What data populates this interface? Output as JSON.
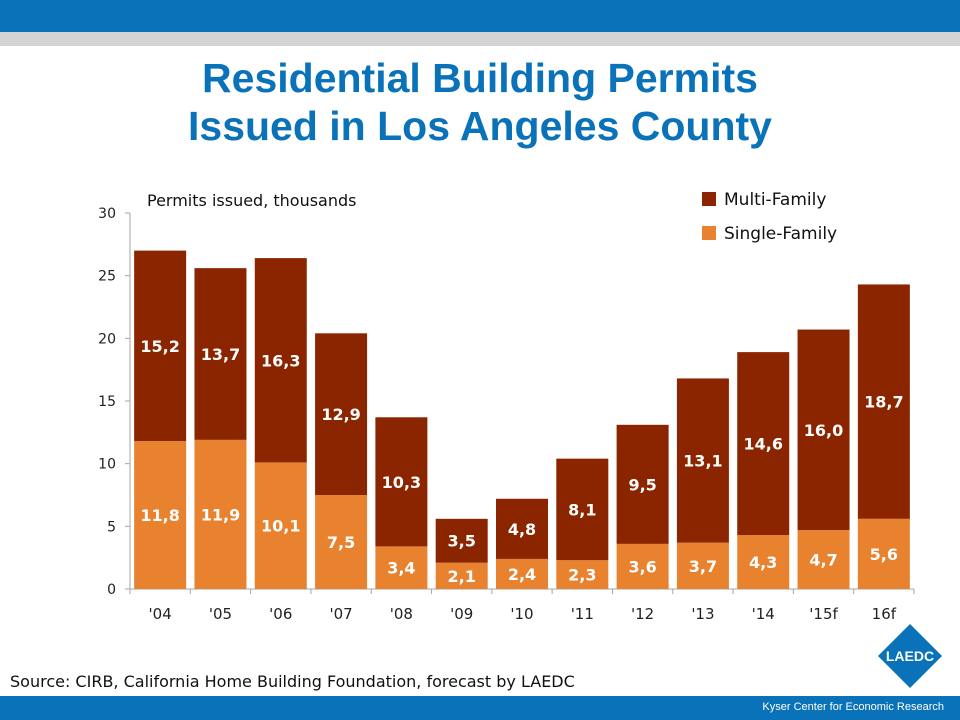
{
  "header": {
    "title_line1": "Residential Building Permits",
    "title_line2": "Issued in Los Angeles County"
  },
  "colors": {
    "brand_blue": "#0a72b8",
    "multi_family": "#8b2500",
    "single_family": "#e8822f"
  },
  "chart_data": {
    "type": "bar",
    "stacked": true,
    "annotation": "Permits issued, thousands",
    "categories": [
      "'04",
      "'05",
      "'06",
      "'07",
      "'08",
      "'09",
      "'10",
      "'11",
      "'12",
      "'13",
      "'14",
      "'15f",
      "16f"
    ],
    "series": [
      {
        "name": "Single-Family",
        "color": "#e8822f",
        "values": [
          11.8,
          11.9,
          10.1,
          7.5,
          3.4,
          2.1,
          2.4,
          2.3,
          3.6,
          3.7,
          4.3,
          4.7,
          5.6
        ],
        "labels": [
          "11,8",
          "11,9",
          "10,1",
          "7,5",
          "3,4",
          "2,1",
          "2,4",
          "2,3",
          "3,6",
          "3,7",
          "4,3",
          "4,7",
          "5,6"
        ]
      },
      {
        "name": "Multi-Family",
        "color": "#8b2500",
        "values": [
          15.2,
          13.7,
          16.3,
          12.9,
          10.3,
          3.5,
          4.8,
          8.1,
          9.5,
          13.1,
          14.6,
          16.0,
          18.7
        ],
        "labels": [
          "15,2",
          "13,7",
          "16,3",
          "12,9",
          "10,3",
          "3,5",
          "4,8",
          "8,1",
          "9,5",
          "13,1",
          "14,6",
          "16,0",
          "18,7"
        ]
      }
    ],
    "yticks": [
      "0",
      "5",
      "10",
      "15",
      "20",
      "25",
      "30"
    ],
    "ylim": [
      0,
      30
    ],
    "legend": [
      "Multi-Family",
      "Single-Family"
    ],
    "legend_position": "top-right",
    "grid": false
  },
  "footer": {
    "source": "Source:  CIRB, California Home Building Foundation, forecast by LAEDC",
    "logo_text": "LAEDC",
    "org": "Kyser Center for Economic Research"
  }
}
